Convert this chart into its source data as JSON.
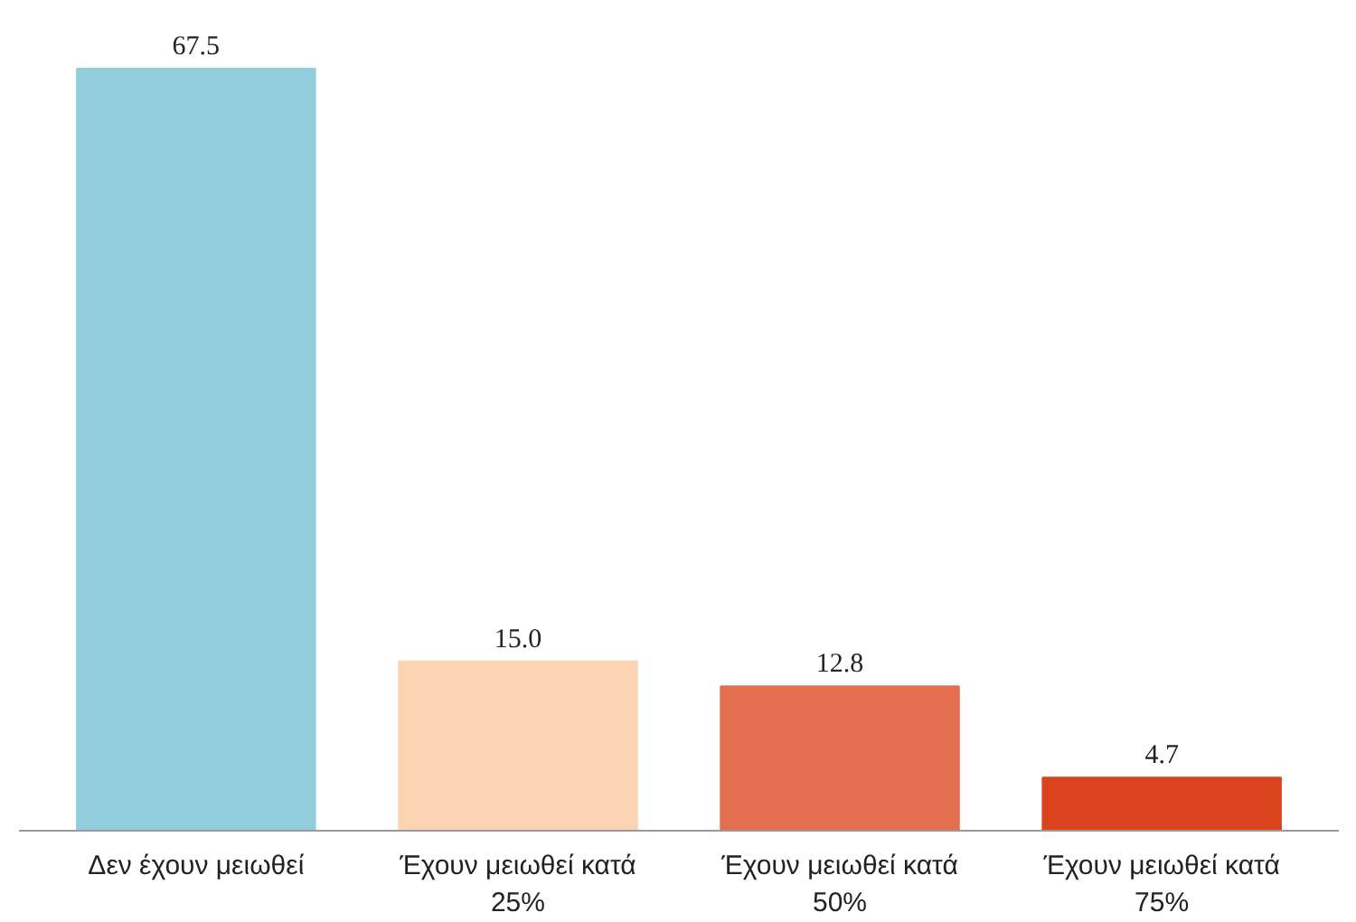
{
  "chart_data": {
    "type": "bar",
    "categories": [
      "Δεν έχουν μειωθεί",
      "Έχουν μειωθεί κατά 25%",
      "Έχουν μειωθεί κατά 50%",
      "Έχουν μειωθεί κατά 75%"
    ],
    "values": [
      67.5,
      15.0,
      12.8,
      4.7
    ],
    "colors": [
      "#92cddc",
      "#fbd4b4",
      "#e46f50",
      "#d9441f"
    ],
    "value_labels": [
      "67.5",
      "15.0",
      "12.8",
      "4.7"
    ],
    "grid": false
  }
}
